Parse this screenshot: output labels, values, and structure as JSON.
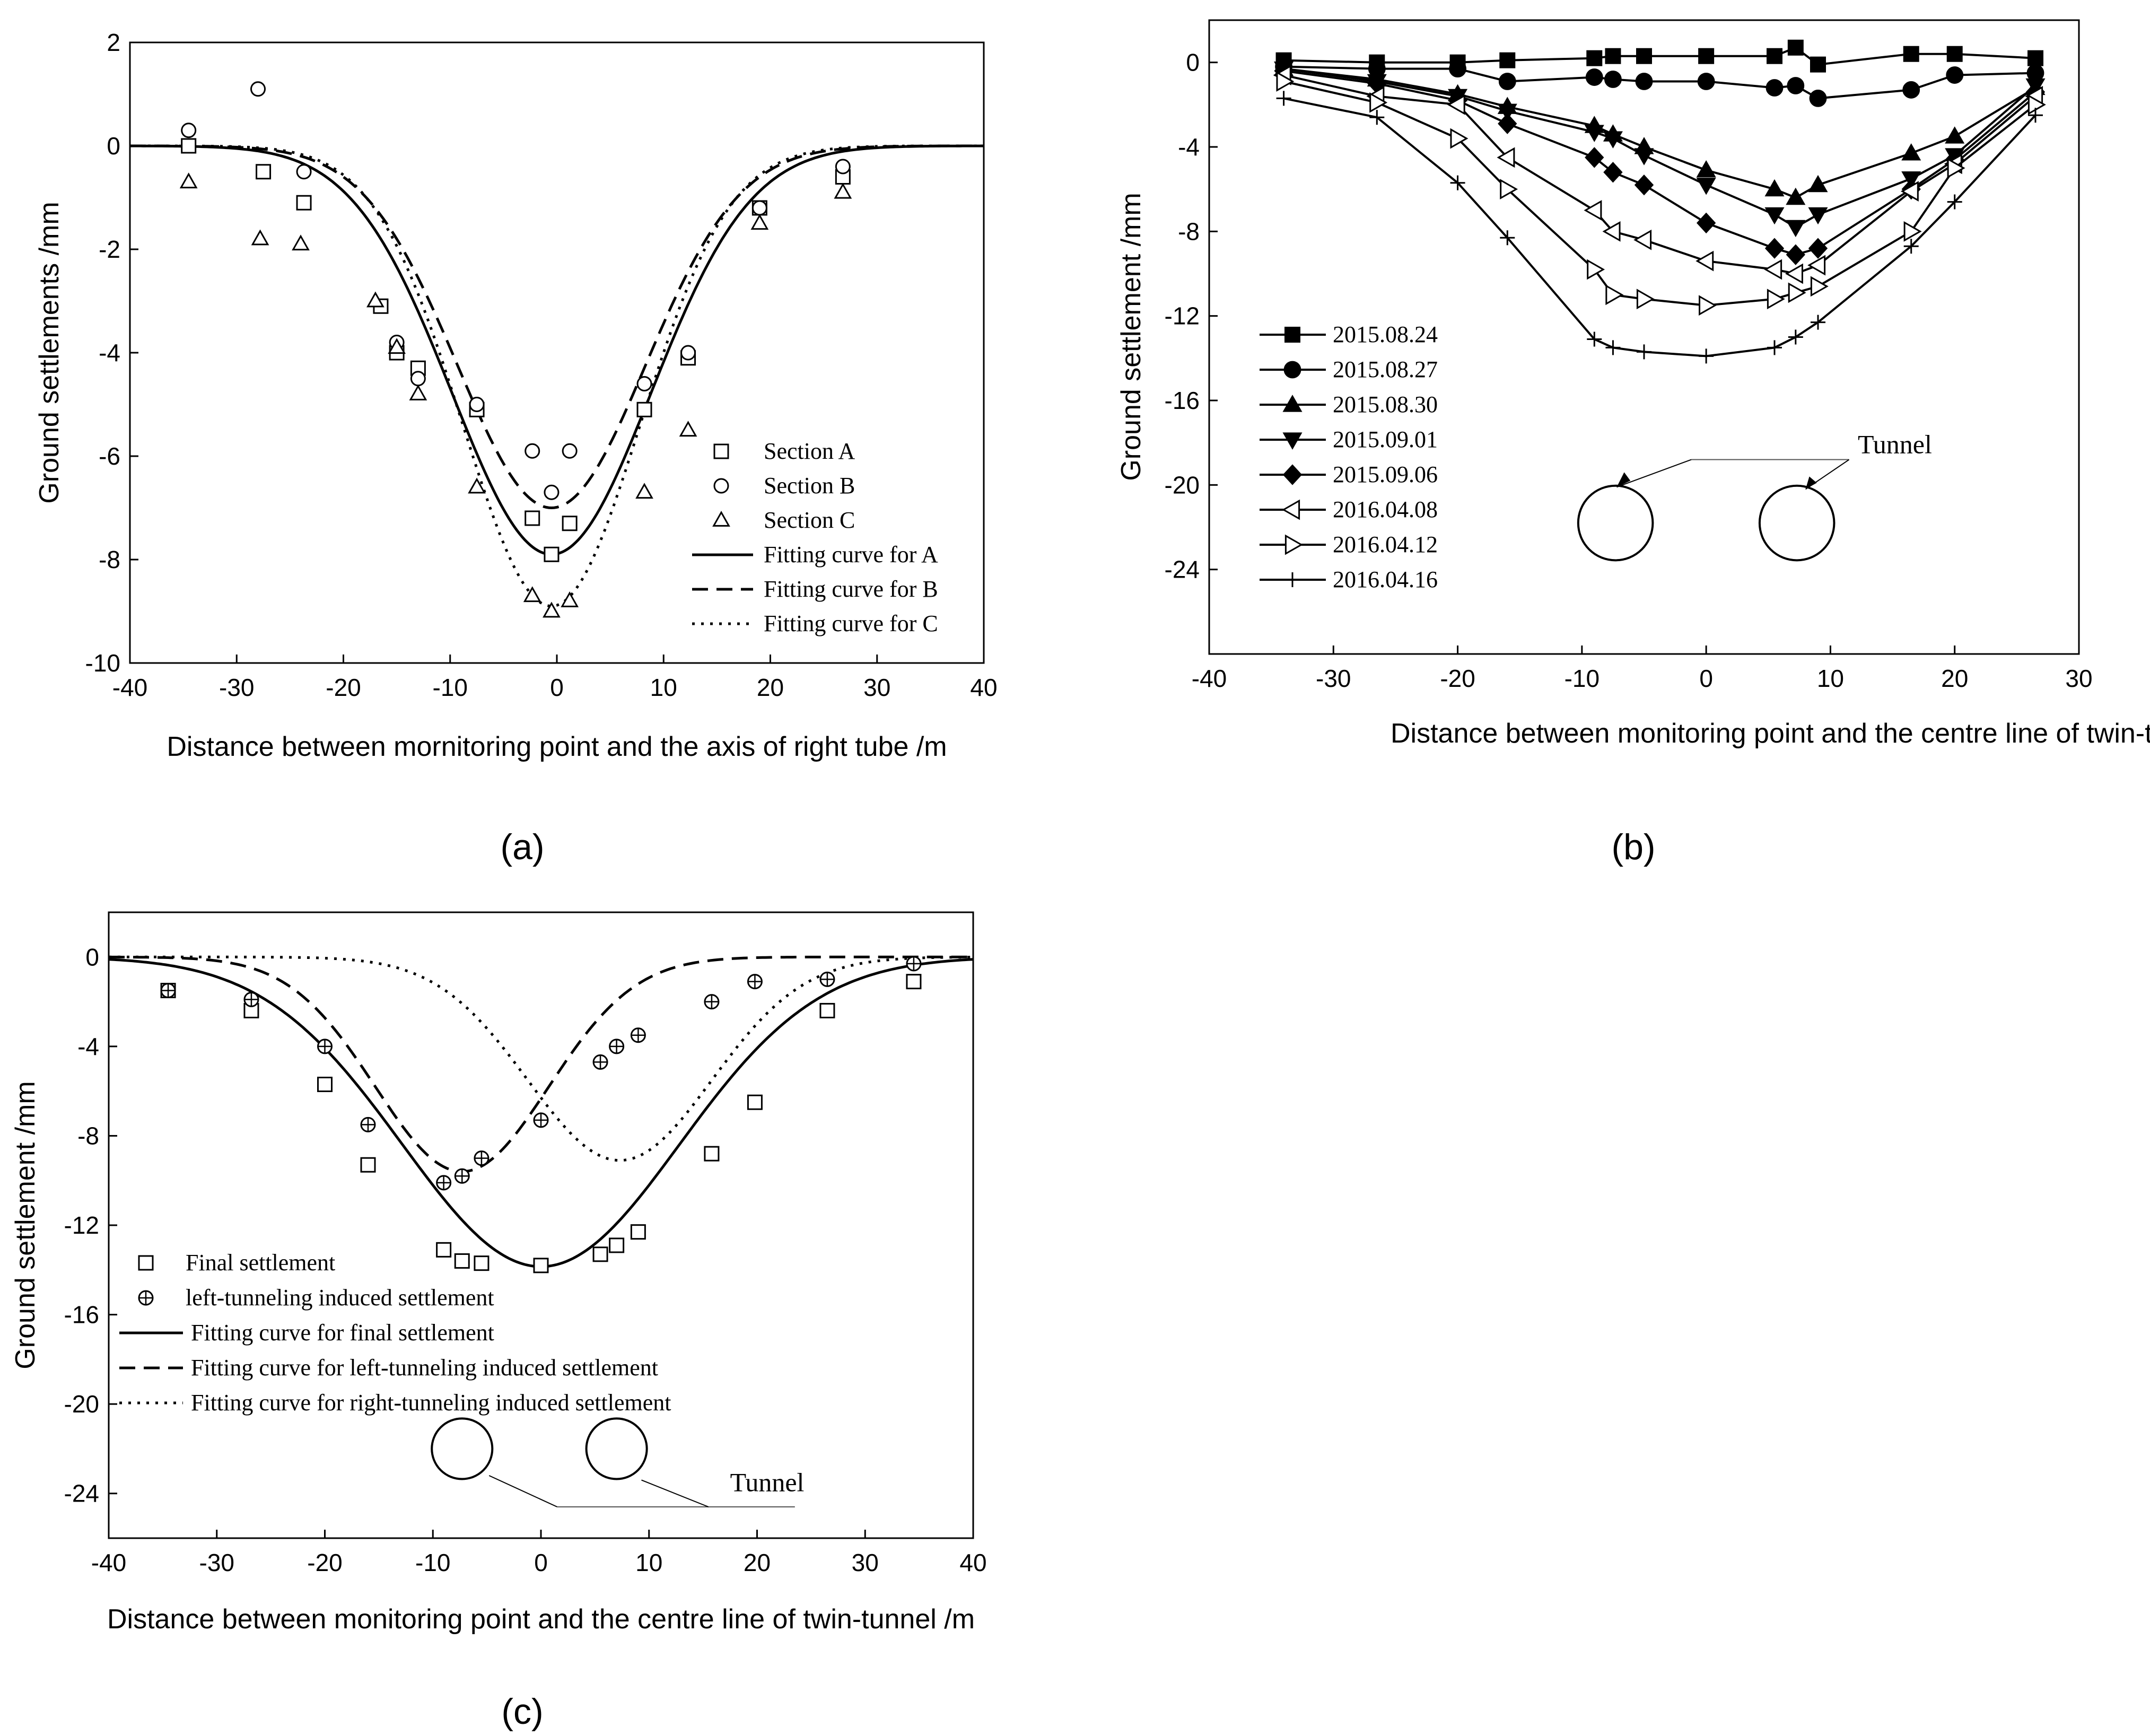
{
  "figure": {
    "captions": [
      "(a)",
      "(b)",
      "(c)"
    ]
  },
  "chart_data": [
    {
      "id": "a",
      "type": "scatter",
      "caption": "(a)",
      "xlabel": "Distance between mornitoring point and the axis of right tube /m",
      "ylabel": "Ground settlements /mm",
      "xlim": [
        -40,
        40
      ],
      "ylim": [
        -10,
        2
      ],
      "xticks": [
        -40,
        -30,
        -20,
        -10,
        0,
        10,
        20,
        30,
        40
      ],
      "yticks": [
        2,
        0,
        -2,
        -4,
        -6,
        -8,
        -10
      ],
      "legend": "center-right",
      "points": [
        {
          "name": "Section A",
          "marker": "square",
          "x": [
            -34.5,
            -27.5,
            -23.7,
            -16.5,
            -15.0,
            -13.0,
            -7.5,
            -2.3,
            -0.5,
            1.2,
            8.2,
            12.3,
            19.0,
            26.8
          ],
          "y": [
            0.0,
            -0.5,
            -1.1,
            -3.1,
            -4.0,
            -4.3,
            -5.1,
            -7.2,
            -7.9,
            -7.3,
            -5.1,
            -4.1,
            -1.2,
            -0.6
          ]
        },
        {
          "name": "Section B",
          "marker": "circle",
          "x": [
            -34.5,
            -28.0,
            -23.7,
            -15.0,
            -13.0,
            -7.5,
            -2.3,
            -0.5,
            1.2,
            8.2,
            12.3,
            19.0,
            26.8
          ],
          "y": [
            0.3,
            1.1,
            -0.5,
            -3.8,
            -4.5,
            -5.0,
            -5.9,
            -6.7,
            -5.9,
            -4.6,
            -4.0,
            -1.2,
            -0.4
          ]
        },
        {
          "name": "Section C",
          "marker": "triangle",
          "x": [
            -34.5,
            -27.8,
            -24.0,
            -17.0,
            -15.0,
            -13.0,
            -7.5,
            -2.3,
            -0.5,
            1.2,
            8.2,
            12.3,
            19.0,
            26.8
          ],
          "y": [
            -0.7,
            -1.8,
            -1.9,
            -3.0,
            -3.9,
            -4.8,
            -6.6,
            -8.7,
            -9.0,
            -8.8,
            -6.7,
            -5.5,
            -1.5,
            -0.9
          ]
        }
      ],
      "curves": [
        {
          "name": "Fitting curve for A",
          "style": "solid",
          "center": -0.5,
          "smax": -7.9,
          "i": 9.3
        },
        {
          "name": "Fitting curve for B",
          "style": "dash",
          "center": -0.5,
          "smax": -7.0,
          "i": 8.8
        },
        {
          "name": "Fitting curve for C",
          "style": "dot",
          "center": -0.5,
          "smax": -8.9,
          "i": 8.3
        }
      ],
      "legend_entries": [
        "Section A",
        "Section B",
        "Section C",
        "Fitting curve for A",
        "Fitting curve for B",
        "Fitting curve for C"
      ]
    },
    {
      "id": "b",
      "type": "line",
      "caption": "(b)",
      "xlabel": "Distance between monitoring point and the centre line of twin-tunnel /m",
      "ylabel": "Ground settlement /mm",
      "xlim": [
        -40,
        30
      ],
      "ylim": [
        -28,
        2
      ],
      "xticks": [
        -40,
        -30,
        -20,
        -10,
        0,
        10,
        20,
        30
      ],
      "yticks": [
        0,
        -4,
        -8,
        -12,
        -16,
        -20,
        -24
      ],
      "legend": "center-left",
      "annotation": "Tunnel",
      "tunnels": [
        {
          "x": -7.3,
          "y": -21.8,
          "r": 3.0
        },
        {
          "x": 7.3,
          "y": -21.8,
          "r": 3.0
        }
      ],
      "x": [
        -34.0,
        -26.5,
        -20.0,
        -16.0,
        -9.0,
        -7.5,
        -5.0,
        0.0,
        5.5,
        7.2,
        9.0,
        16.5,
        20.0,
        26.5
      ],
      "series": [
        {
          "name": "2015.08.24",
          "marker": "square-filled",
          "values": [
            0.1,
            0.0,
            0.0,
            0.1,
            0.2,
            0.3,
            0.3,
            0.3,
            0.3,
            0.7,
            -0.1,
            0.4,
            0.4,
            0.2
          ]
        },
        {
          "name": "2015.08.27",
          "marker": "circle-filled",
          "values": [
            -0.2,
            -0.3,
            -0.3,
            -0.9,
            -0.7,
            -0.8,
            -0.9,
            -0.9,
            -1.2,
            -1.1,
            -1.7,
            -1.3,
            -0.6,
            -0.5
          ]
        },
        {
          "name": "2015.08.30",
          "marker": "triangle-up-filled",
          "values": [
            -0.3,
            -0.8,
            -1.5,
            -2.1,
            -3.0,
            -3.4,
            -4.0,
            -5.1,
            -6.0,
            -6.4,
            -5.8,
            -4.3,
            -3.5,
            -1.2
          ]
        },
        {
          "name": "2015.09.01",
          "marker": "triangle-down-filled",
          "values": [
            -0.3,
            -0.9,
            -1.6,
            -2.3,
            -3.3,
            -3.6,
            -4.4,
            -5.8,
            -7.2,
            -7.8,
            -7.2,
            -5.5,
            -4.4,
            -1.1
          ]
        },
        {
          "name": "2015.09.06",
          "marker": "diamond-filled",
          "values": [
            -0.4,
            -1.0,
            -1.8,
            -2.9,
            -4.5,
            -5.2,
            -5.8,
            -7.6,
            -8.8,
            -9.1,
            -8.8,
            -6.0,
            -4.6,
            -1.4
          ]
        },
        {
          "name": "2016.04.08",
          "marker": "triangle-left-open",
          "values": [
            -0.6,
            -1.6,
            -2.0,
            -4.5,
            -7.0,
            -8.0,
            -8.4,
            -9.4,
            -9.8,
            -10.0,
            -9.6,
            -6.1,
            -4.8,
            -1.6
          ]
        },
        {
          "name": "2016.04.12",
          "marker": "triangle-right-open",
          "values": [
            -0.9,
            -1.9,
            -3.6,
            -6.0,
            -9.8,
            -11.0,
            -11.2,
            -11.5,
            -11.2,
            -10.9,
            -10.6,
            -8.0,
            -5.0,
            -2.0
          ]
        },
        {
          "name": "2016.04.16",
          "marker": "plus",
          "values": [
            -1.7,
            -2.6,
            -5.7,
            -8.3,
            -13.1,
            -13.5,
            -13.7,
            -13.9,
            -13.5,
            -13.0,
            -12.3,
            -8.7,
            -6.6,
            -2.5
          ]
        }
      ]
    },
    {
      "id": "c",
      "type": "scatter",
      "caption": "(c)",
      "xlabel": "Distance between monitoring point and the centre line of twin-tunnel /m",
      "ylabel": "Ground settlement /mm",
      "xlim": [
        -40,
        40
      ],
      "ylim": [
        -26,
        2
      ],
      "xticks": [
        -40,
        -30,
        -20,
        -10,
        0,
        10,
        20,
        30,
        40
      ],
      "yticks": [
        0,
        -4,
        -8,
        -12,
        -16,
        -20,
        -24
      ],
      "legend": "lower-left",
      "annotation": "Tunnel",
      "tunnels": [
        {
          "x": -7.3,
          "y": -22.0,
          "r": 2.8
        },
        {
          "x": 7.0,
          "y": -22.0,
          "r": 2.8
        }
      ],
      "points": [
        {
          "name": "Final settlement",
          "marker": "square",
          "x": [
            -34.5,
            -26.8,
            -20.0,
            -16.0,
            -9.0,
            -7.3,
            -5.5,
            0.0,
            5.5,
            7.0,
            9.0,
            15.8,
            19.8,
            26.5,
            34.5
          ],
          "y": [
            -1.5,
            -2.4,
            -5.7,
            -9.3,
            -13.1,
            -13.6,
            -13.7,
            -13.8,
            -13.3,
            -12.9,
            -12.3,
            -8.8,
            -6.5,
            -2.4,
            -1.1
          ]
        },
        {
          "name": "left-tunneling induced settlement",
          "marker": "circle-plus",
          "x": [
            -34.5,
            -26.8,
            -20.0,
            -16.0,
            -9.0,
            -7.3,
            -5.5,
            0.0,
            5.5,
            7.0,
            9.0,
            15.8,
            19.8,
            26.5,
            34.5
          ],
          "y": [
            -1.5,
            -1.9,
            -4.0,
            -7.5,
            -10.1,
            -9.8,
            -9.0,
            -7.3,
            -4.7,
            -4.0,
            -3.5,
            -2.0,
            -1.1,
            -1.0,
            -0.3
          ]
        }
      ],
      "curves": [
        {
          "name": "Fitting curve for final settlement",
          "style": "solid",
          "center": 0.0,
          "smax": -13.85,
          "i": 12.8
        },
        {
          "name": "Fitting curve for left-tunneling induced settlement",
          "style": "dash",
          "center": -7.3,
          "smax": -9.6,
          "i": 8.0
        },
        {
          "name": "Fitting curve for right-tunneling induced settlement",
          "style": "dot",
          "center": 7.3,
          "smax": -9.1,
          "i": 8.5
        }
      ],
      "legend_entries": [
        "Final settlement",
        "left-tunneling induced settlement",
        "Fitting curve for final settlement",
        "Fitting curve for left-tunneling induced settlement",
        "Fitting curve for right-tunneling induced settlement"
      ]
    }
  ]
}
